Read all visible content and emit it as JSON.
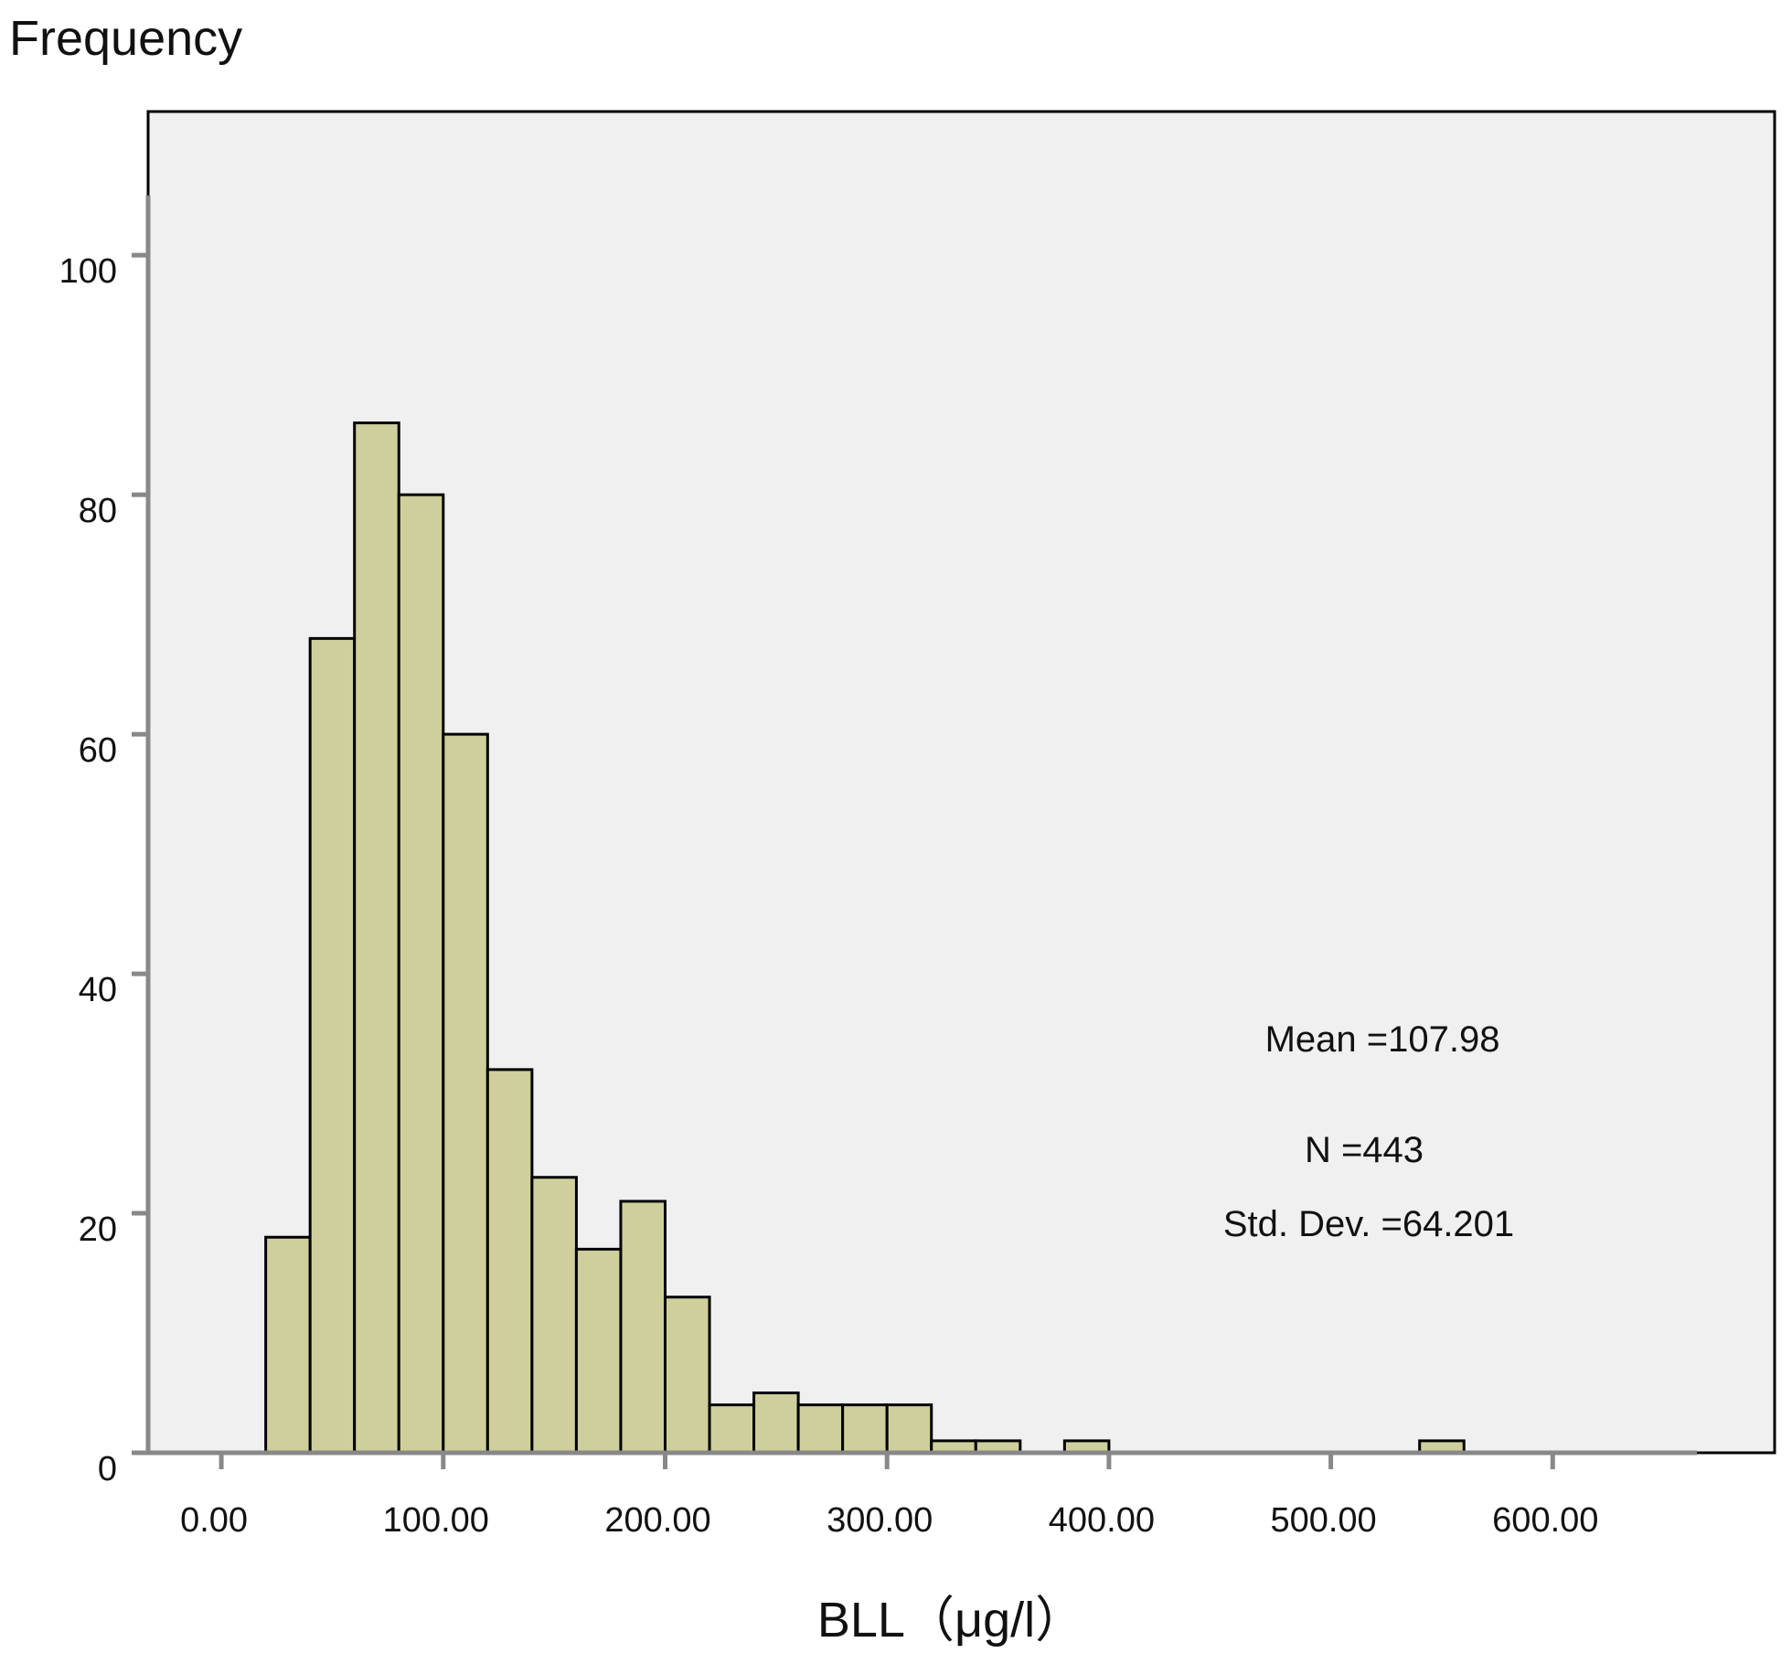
{
  "chart_data": {
    "type": "bar",
    "title": "",
    "xlabel": "BLL（μg/l）",
    "ylabel": "Frequency",
    "xlim": [
      -33,
      700
    ],
    "ylim": [
      0,
      112
    ],
    "grid": false,
    "x_ticks": [
      {
        "value": 0,
        "label": "0.00"
      },
      {
        "value": 100,
        "label": "100.00"
      },
      {
        "value": 200,
        "label": "200.00"
      },
      {
        "value": 300,
        "label": "300.00"
      },
      {
        "value": 400,
        "label": "400.00"
      },
      {
        "value": 500,
        "label": "500.00"
      },
      {
        "value": 600,
        "label": "600.00"
      }
    ],
    "y_ticks": [
      {
        "value": 0,
        "label": "0"
      },
      {
        "value": 20,
        "label": "20"
      },
      {
        "value": 40,
        "label": "40"
      },
      {
        "value": 60,
        "label": "60"
      },
      {
        "value": 80,
        "label": "80"
      },
      {
        "value": 100,
        "label": "100"
      }
    ],
    "bins": [
      {
        "start": 20,
        "end": 40,
        "count": 18
      },
      {
        "start": 40,
        "end": 60,
        "count": 68
      },
      {
        "start": 60,
        "end": 80,
        "count": 86
      },
      {
        "start": 80,
        "end": 100,
        "count": 80
      },
      {
        "start": 100,
        "end": 120,
        "count": 60
      },
      {
        "start": 120,
        "end": 140,
        "count": 32
      },
      {
        "start": 140,
        "end": 160,
        "count": 23
      },
      {
        "start": 160,
        "end": 180,
        "count": 17
      },
      {
        "start": 180,
        "end": 200,
        "count": 21
      },
      {
        "start": 200,
        "end": 220,
        "count": 13
      },
      {
        "start": 220,
        "end": 240,
        "count": 4
      },
      {
        "start": 240,
        "end": 260,
        "count": 5
      },
      {
        "start": 260,
        "end": 280,
        "count": 4
      },
      {
        "start": 280,
        "end": 300,
        "count": 4
      },
      {
        "start": 300,
        "end": 320,
        "count": 4
      },
      {
        "start": 320,
        "end": 340,
        "count": 1
      },
      {
        "start": 340,
        "end": 360,
        "count": 1
      },
      {
        "start": 380,
        "end": 400,
        "count": 1
      },
      {
        "start": 540,
        "end": 560,
        "count": 1
      }
    ],
    "stats": {
      "mean": "Mean =107.98",
      "n": "N =443",
      "std": "Std. Dev. =64.201"
    },
    "colors": {
      "bar_fill": "#cfcf9d",
      "bar_stroke": "#000000",
      "plot_background": "#f0f0f0",
      "axis": "#888888"
    }
  }
}
